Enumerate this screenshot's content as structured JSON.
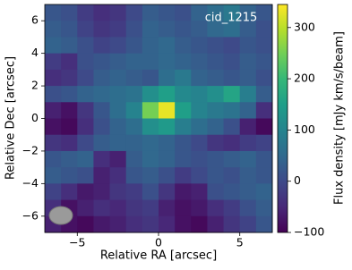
{
  "chart_data": {
    "type": "heatmap",
    "colormap": "viridis",
    "annotation": "cid_1215",
    "xlabel": "Relative RA [arcsec]",
    "ylabel": "Relative Dec [arcsec]",
    "colorbar_label": "Flux density [mJy km/s/beam]",
    "xlim": [
      -7,
      7
    ],
    "ylim": [
      -7,
      7
    ],
    "xticks": [
      {
        "value": -5,
        "label": "−5"
      },
      0,
      5
    ],
    "yticks": [
      {
        "value": -6,
        "label": "−6"
      },
      {
        "value": -4,
        "label": "−4"
      },
      {
        "value": -2,
        "label": "−2"
      },
      0,
      2,
      4,
      6
    ],
    "clim": [
      -100,
      345
    ],
    "cticks": [
      {
        "value": -100,
        "label": "−100"
      },
      0,
      100,
      200,
      300
    ],
    "x": [
      -6.5,
      -5.5,
      -4.5,
      -3.5,
      -2.5,
      -1.5,
      -0.5,
      0.5,
      1.5,
      2.5,
      3.5,
      4.5,
      5.5,
      6.5
    ],
    "y": [
      6.5,
      5.5,
      4.5,
      3.5,
      2.5,
      1.5,
      0.5,
      -0.5,
      -1.5,
      -2.5,
      -3.5,
      -4.5,
      -5.5,
      -6.5
    ],
    "values": [
      [
        20,
        10,
        -20,
        -40,
        -30,
        0,
        30,
        20,
        10,
        40,
        60,
        80,
        40,
        20
      ],
      [
        30,
        20,
        -10,
        -30,
        -20,
        10,
        40,
        30,
        20,
        30,
        50,
        60,
        30,
        10
      ],
      [
        40,
        30,
        10,
        -10,
        0,
        20,
        40,
        50,
        30,
        20,
        10,
        0,
        20,
        10
      ],
      [
        -20,
        -40,
        10,
        20,
        30,
        40,
        40,
        50,
        40,
        30,
        20,
        10,
        30,
        20
      ],
      [
        -40,
        -30,
        0,
        30,
        40,
        30,
        20,
        60,
        80,
        40,
        30,
        20,
        30,
        10
      ],
      [
        10,
        20,
        40,
        50,
        60,
        70,
        120,
        150,
        110,
        100,
        120,
        160,
        90,
        30
      ],
      [
        -60,
        -80,
        -30,
        20,
        60,
        100,
        250,
        330,
        150,
        100,
        80,
        70,
        40,
        -40
      ],
      [
        -80,
        -90,
        -40,
        10,
        40,
        60,
        120,
        140,
        90,
        60,
        40,
        10,
        -60,
        -90
      ],
      [
        -30,
        -40,
        0,
        30,
        40,
        40,
        50,
        40,
        20,
        0,
        -30,
        -40,
        -20,
        -10
      ],
      [
        20,
        30,
        40,
        -40,
        -60,
        30,
        50,
        40,
        20,
        10,
        20,
        30,
        40,
        20
      ],
      [
        30,
        20,
        10,
        -60,
        -40,
        20,
        30,
        10,
        -20,
        0,
        20,
        10,
        30,
        20
      ],
      [
        -10,
        -40,
        -70,
        -60,
        -30,
        -20,
        10,
        -30,
        -70,
        -60,
        10,
        20,
        30,
        40
      ],
      [
        -40,
        -80,
        -60,
        -40,
        -50,
        -30,
        -20,
        -60,
        -80,
        -70,
        -40,
        -20,
        10,
        30
      ],
      [
        -60,
        -80,
        -90,
        -70,
        -60,
        -40,
        -30,
        -50,
        -80,
        -90,
        -60,
        -30,
        -10,
        20
      ]
    ]
  }
}
